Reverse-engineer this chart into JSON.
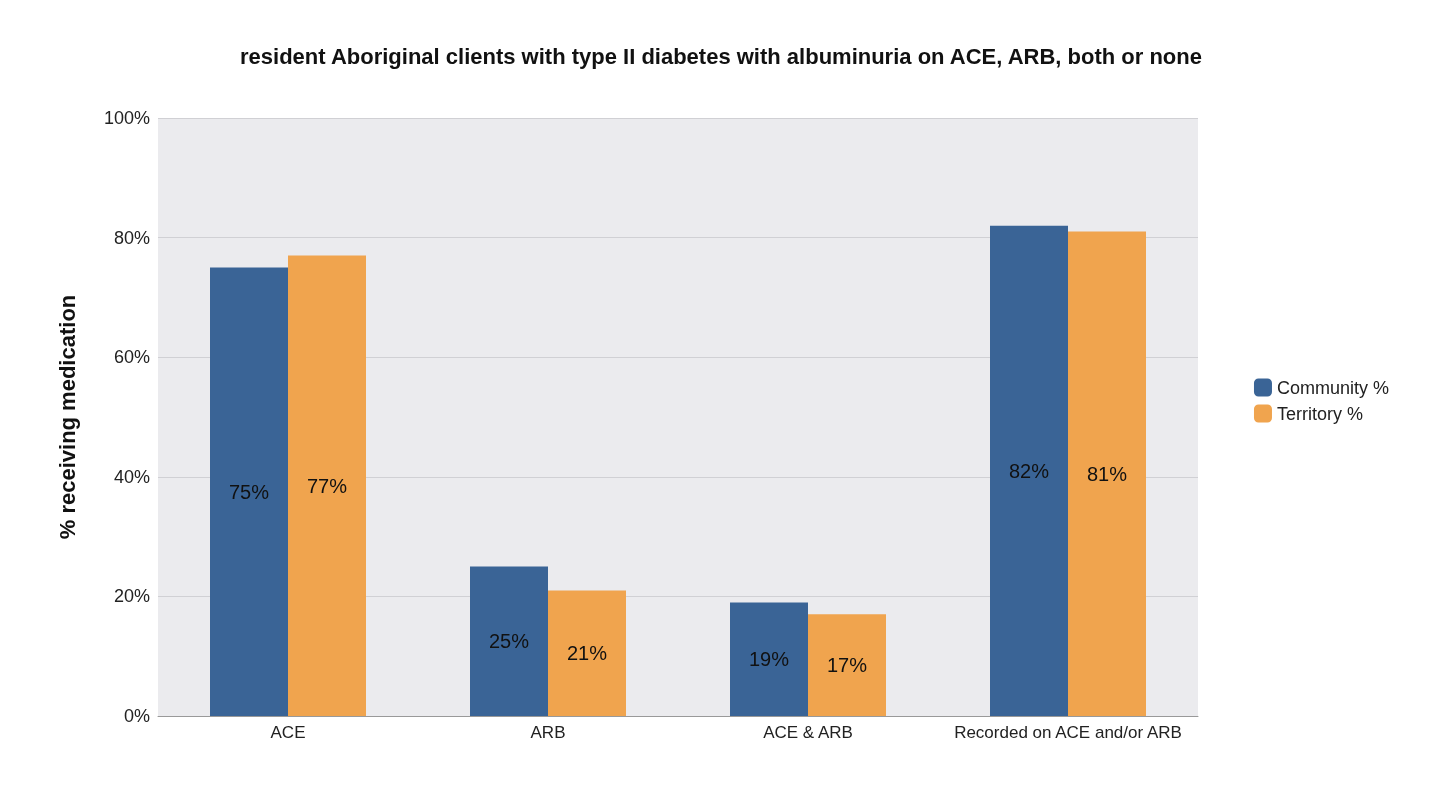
{
  "chart_data": {
    "type": "bar",
    "title": "resident Aboriginal clients with type II diabetes with albuminuria on ACE, ARB, both or none",
    "ylabel": "% receiving medication",
    "categories": [
      "ACE",
      "ARB",
      "ACE & ARB",
      "Recorded on ACE and/or ARB"
    ],
    "series": [
      {
        "name": "Community %",
        "color": "#3a6496",
        "values": [
          75,
          25,
          19,
          82
        ],
        "value_labels": [
          "75%",
          "25%",
          "19%",
          "82%"
        ]
      },
      {
        "name": "Territory %",
        "color": "#f0a44e",
        "values": [
          77,
          21,
          17,
          81
        ],
        "value_labels": [
          "77%",
          "21%",
          "17%",
          "81%"
        ]
      }
    ],
    "ylim": [
      0,
      100
    ],
    "yticks": [
      {
        "value": 0,
        "label": "0%"
      },
      {
        "value": 20,
        "label": "20%"
      },
      {
        "value": 40,
        "label": "40%"
      },
      {
        "value": 60,
        "label": "60%"
      },
      {
        "value": 80,
        "label": "80%"
      },
      {
        "value": 100,
        "label": "100%"
      }
    ],
    "grid": "y",
    "legend": "right"
  }
}
